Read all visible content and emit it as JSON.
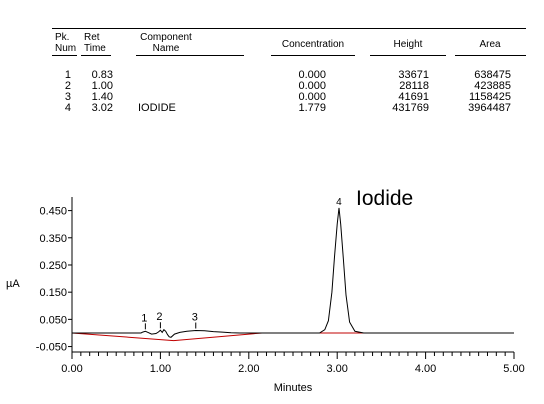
{
  "table": {
    "headers": {
      "pk_line1": "Pk.",
      "pk_line2": "Num",
      "ret_line1": "Ret",
      "ret_line2": "Time",
      "comp_line1": "Component",
      "comp_line2": "Name",
      "concentration": "Concentration",
      "height": "Height",
      "area": "Area"
    },
    "rows": [
      {
        "num": "1",
        "time": "0.83",
        "name": "",
        "conc": "0.000",
        "height": "33671",
        "area": "638475"
      },
      {
        "num": "2",
        "time": "1.00",
        "name": "",
        "conc": "0.000",
        "height": "28118",
        "area": "423885"
      },
      {
        "num": "3",
        "time": "1.40",
        "name": "",
        "conc": "0.000",
        "height": "41691",
        "area": "1158425"
      },
      {
        "num": "4",
        "time": "3.02",
        "name": "IODIDE",
        "conc": "1.779",
        "height": "431769",
        "area": "3964487"
      }
    ]
  },
  "chart_data": {
    "type": "line",
    "xlabel": "Minutes",
    "ylabel": "µA",
    "xlim": [
      0,
      5
    ],
    "ylim": [
      -0.07,
      0.5
    ],
    "x_ticks": [
      "0.00",
      "1.00",
      "2.00",
      "3.00",
      "4.00",
      "5.00"
    ],
    "y_ticks": [
      "0.450",
      "0.350",
      "0.250",
      "0.150",
      "0.050",
      "-0.050"
    ],
    "y_tick_values": [
      0.45,
      0.35,
      0.25,
      0.15,
      0.05,
      -0.05
    ],
    "annotation": "Iodide",
    "trace": {
      "x": [
        0.0,
        0.5,
        0.78,
        0.8,
        0.83,
        0.86,
        0.9,
        0.95,
        0.98,
        1.0,
        1.02,
        1.04,
        1.06,
        1.08,
        1.1,
        1.12,
        1.16,
        1.22,
        1.3,
        1.4,
        1.5,
        1.6,
        1.7,
        1.8,
        1.9,
        2.1,
        2.5,
        2.8,
        2.86,
        2.9,
        2.94,
        2.97,
        3.0,
        3.02,
        3.04,
        3.07,
        3.1,
        3.14,
        3.2,
        3.3,
        5.0
      ],
      "y": [
        0.0,
        0.0,
        0.0,
        0.003,
        0.006,
        0.002,
        -0.004,
        -0.002,
        0.004,
        0.01,
        0.002,
        0.012,
        0.006,
        -0.006,
        -0.014,
        -0.016,
        -0.004,
        0.002,
        0.006,
        0.009,
        0.008,
        0.005,
        0.003,
        0.001,
        0.0,
        0.0,
        0.0,
        0.0,
        0.012,
        0.045,
        0.15,
        0.28,
        0.4,
        0.46,
        0.4,
        0.27,
        0.14,
        0.04,
        0.006,
        0.0,
        0.0
      ]
    },
    "baseline": {
      "x": [
        0.0,
        1.15,
        2.15
      ],
      "y": [
        0.0,
        -0.028,
        0.0
      ]
    },
    "peaks": [
      {
        "label": "1",
        "x": 0.83,
        "y": 0.006
      },
      {
        "label": "2",
        "x": 1.0,
        "y": 0.01
      },
      {
        "label": "3",
        "x": 1.4,
        "y": 0.009
      },
      {
        "label": "4",
        "x": 3.02,
        "y": 0.46
      }
    ],
    "series_color": "#000000",
    "baseline_color": "#c00000"
  }
}
